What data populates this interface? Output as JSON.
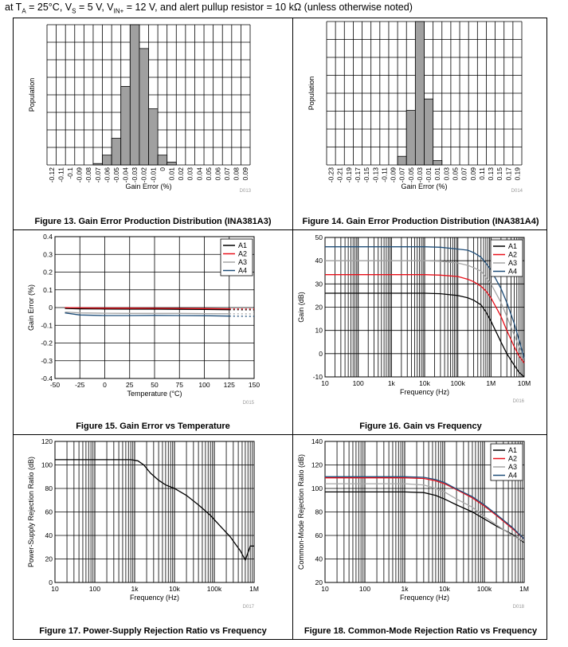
{
  "header": {
    "prefix": "at T",
    "sub_a": "A",
    "part1": " = 25°C, V",
    "sub_s": "S",
    "part2": " = 5 V, V",
    "sub_in": "IN+",
    "part3": " = 12 V, and alert pullup resistor = 10 kΩ (unless otherwise noted)"
  },
  "colors": {
    "A1": "#000000",
    "A2": "#e8101a",
    "A3": "#a6a6a6",
    "A4": "#1f4e79",
    "bar": "#a0a0a0"
  },
  "figures": [
    {
      "caption": "Figure 13. Gain Error Production Distribution (INA381A3)",
      "code": "D013",
      "chart_data": {
        "type": "bar",
        "xlabel": "Gain Error (%)",
        "ylabel": "Population",
        "categories": [
          "-0.12",
          "-0.11",
          "-0.1",
          "-0.09",
          "-0.08",
          "-0.07",
          "-0.06",
          "-0.05",
          "-0.04",
          "-0.03",
          "-0.02",
          "-0.01",
          "0",
          "0.01",
          "0.02",
          "0.03",
          "0.04",
          "0.05",
          "0.06",
          "0.07",
          "0.08",
          "0.09"
        ],
        "values": [
          0,
          0,
          0,
          0,
          0,
          0.01,
          0.07,
          0.19,
          0.56,
          1.0,
          0.83,
          0.4,
          0.07,
          0.02,
          0,
          0,
          0,
          0,
          0,
          0,
          0,
          0
        ],
        "grid": true
      }
    },
    {
      "caption": "Figure 14. Gain Error Production Distribution (INA381A4)",
      "code": "D014",
      "chart_data": {
        "type": "bar",
        "xlabel": "Gain Error (%)",
        "ylabel": "Population",
        "categories": [
          "-0.23",
          "-0.21",
          "-0.19",
          "-0.17",
          "-0.15",
          "-0.13",
          "-0.11",
          "-0.09",
          "-0.07",
          "-0.05",
          "-0.03",
          "-0.01",
          "0.01",
          "0.03",
          "0.05",
          "0.07",
          "0.09",
          "0.11",
          "0.13",
          "0.15",
          "0.17",
          "0.19"
        ],
        "values": [
          0,
          0,
          0,
          0,
          0,
          0,
          0,
          0,
          0.06,
          0.38,
          1.0,
          0.46,
          0.03,
          0,
          0,
          0,
          0,
          0,
          0,
          0,
          0,
          0
        ],
        "grid": true
      }
    },
    {
      "caption": "Figure 15. Gain Error vs Temperature",
      "code": "D015",
      "chart_data": {
        "type": "line",
        "xlabel": "Temperature (°C)",
        "ylabel": "Gain Error (%)",
        "xlim": [
          -50,
          150
        ],
        "ylim": [
          -0.4,
          0.4
        ],
        "xticks": [
          "-50",
          "-25",
          "0",
          "25",
          "50",
          "75",
          "100",
          "125",
          "150"
        ],
        "yticks": [
          "-0.4",
          "-0.3",
          "-0.2",
          "-0.1",
          "0",
          "0.1",
          "0.2",
          "0.3",
          "0.4"
        ],
        "x": [
          -40,
          -25,
          0,
          25,
          50,
          75,
          100,
          125
        ],
        "extrapolated_x": [
          125,
          150
        ],
        "series": [
          {
            "name": "A1",
            "color": "A1",
            "y": [
              -0.005,
              -0.007,
              -0.008,
              -0.009,
              -0.009,
              -0.01,
              -0.011,
              -0.012
            ],
            "ext": [
              -0.012,
              -0.013
            ]
          },
          {
            "name": "A2",
            "color": "A2",
            "y": [
              0.0,
              -0.002,
              -0.003,
              -0.003,
              -0.004,
              -0.005,
              -0.006,
              -0.007
            ],
            "ext": [
              -0.007,
              -0.008
            ]
          },
          {
            "name": "A3",
            "color": "A3",
            "y": [
              -0.025,
              -0.03,
              -0.032,
              -0.033,
              -0.033,
              -0.033,
              -0.034,
              -0.035
            ],
            "ext": [
              -0.035,
              -0.036
            ]
          },
          {
            "name": "A4",
            "color": "A4",
            "y": [
              -0.03,
              -0.042,
              -0.045,
              -0.045,
              -0.044,
              -0.045,
              -0.046,
              -0.048
            ],
            "ext": [
              -0.048,
              -0.05
            ]
          }
        ],
        "legend": "top-right",
        "grid": true
      }
    },
    {
      "caption": "Figure 16. Gain vs Frequency",
      "code": "D016",
      "chart_data": {
        "type": "line",
        "xscale": "log",
        "xlabel": "Frequency (Hz)",
        "ylabel": "Gain (dB)",
        "xlim": [
          10,
          10000000
        ],
        "ylim": [
          -10,
          50
        ],
        "xticks": [
          "10",
          "100",
          "1k",
          "10k",
          "100k",
          "1M",
          "10M"
        ],
        "yticks": [
          "-10",
          "0",
          "10",
          "20",
          "30",
          "40",
          "50"
        ],
        "x": [
          10,
          10000,
          30000,
          100000,
          200000,
          300000,
          500000,
          700000,
          1000000,
          2000000,
          3000000,
          5000000,
          7000000,
          10000000
        ],
        "series": [
          {
            "name": "A1",
            "color": "A1",
            "y": [
              26,
              26,
              25.8,
              25,
              24,
              23,
              21,
              18,
              14,
              5,
              0,
              -5,
              -8,
              -10
            ]
          },
          {
            "name": "A2",
            "color": "A2",
            "y": [
              34,
              34,
              33.8,
              33.2,
              32,
              31,
              29,
              27,
              24,
              16,
              10,
              3,
              -1,
              -4
            ]
          },
          {
            "name": "A3",
            "color": "A3",
            "y": [
              40,
              40,
              39.8,
              39,
              38,
              37,
              35.5,
              33,
              30,
              22,
              16,
              8,
              3,
              -2
            ]
          },
          {
            "name": "A4",
            "color": "A4",
            "y": [
              46,
              46,
              45.8,
              45,
              44.5,
              43.5,
              41.5,
              39,
              36,
              28,
              22,
              13,
              6,
              -2
            ]
          }
        ],
        "legend": "top-right",
        "grid": true
      }
    },
    {
      "caption": "Figure 17. Power-Supply Rejection Ratio vs Frequency",
      "code": "D017",
      "chart_data": {
        "type": "line",
        "xscale": "log",
        "xlabel": "Frequency (Hz)",
        "ylabel": "Power-Supply Rejection Ratio (dB)",
        "xlim": [
          10,
          1000000
        ],
        "ylim": [
          0,
          120
        ],
        "xticks": [
          "10",
          "100",
          "1k",
          "10k",
          "100k",
          "1M"
        ],
        "yticks": [
          "0",
          "20",
          "40",
          "60",
          "80",
          "100",
          "120"
        ],
        "x": [
          10,
          800,
          1200,
          1700,
          2500,
          4000,
          6000,
          10000,
          20000,
          40000,
          80000,
          150000,
          250000,
          350000,
          450000,
          600000,
          800000,
          1000000
        ],
        "series": [
          {
            "name": "",
            "color": "A1",
            "y": [
              104.5,
              104.5,
              103.5,
              100,
              93,
              87,
              83,
              80,
              74,
              66,
              57,
              47,
              39,
              32,
              27,
              19,
              31,
              31
            ]
          }
        ],
        "grid": true
      }
    },
    {
      "caption": "Figure 18. Common-Mode Rejection Ratio vs Frequency",
      "code": "D018",
      "chart_data": {
        "type": "line",
        "xscale": "log",
        "xlabel": "Frequency (Hz)",
        "ylabel": "Common-Mode Rejection Ratio (dB)",
        "xlim": [
          10,
          1000000
        ],
        "ylim": [
          20,
          140
        ],
        "xticks": [
          "10",
          "100",
          "1k",
          "10k",
          "100k",
          "1M"
        ],
        "yticks": [
          "20",
          "40",
          "60",
          "80",
          "100",
          "120",
          "140"
        ],
        "x": [
          10,
          1000,
          3000,
          6000,
          10000,
          20000,
          50000,
          100000,
          200000,
          500000,
          1000000
        ],
        "series": [
          {
            "name": "A1",
            "color": "A1",
            "y": [
              97,
              97,
              96.5,
              94,
              91,
              86,
              80,
              74,
              68,
              61,
              54
            ]
          },
          {
            "name": "A2",
            "color": "A2",
            "y": [
              109,
              109,
              108.5,
              106.5,
              104,
              99,
              92,
              85,
              77,
              66,
              57
            ]
          },
          {
            "name": "A3",
            "color": "A3",
            "y": [
              104,
              104,
              103,
              100,
              97,
              91,
              84,
              76,
              69,
              60,
              55
            ]
          },
          {
            "name": "A4",
            "color": "A4",
            "y": [
              110,
              110,
              109.5,
              107.5,
              105,
              99.5,
              93,
              86,
              78,
              67,
              57
            ]
          }
        ],
        "legend": "top-right",
        "grid": true
      }
    }
  ]
}
